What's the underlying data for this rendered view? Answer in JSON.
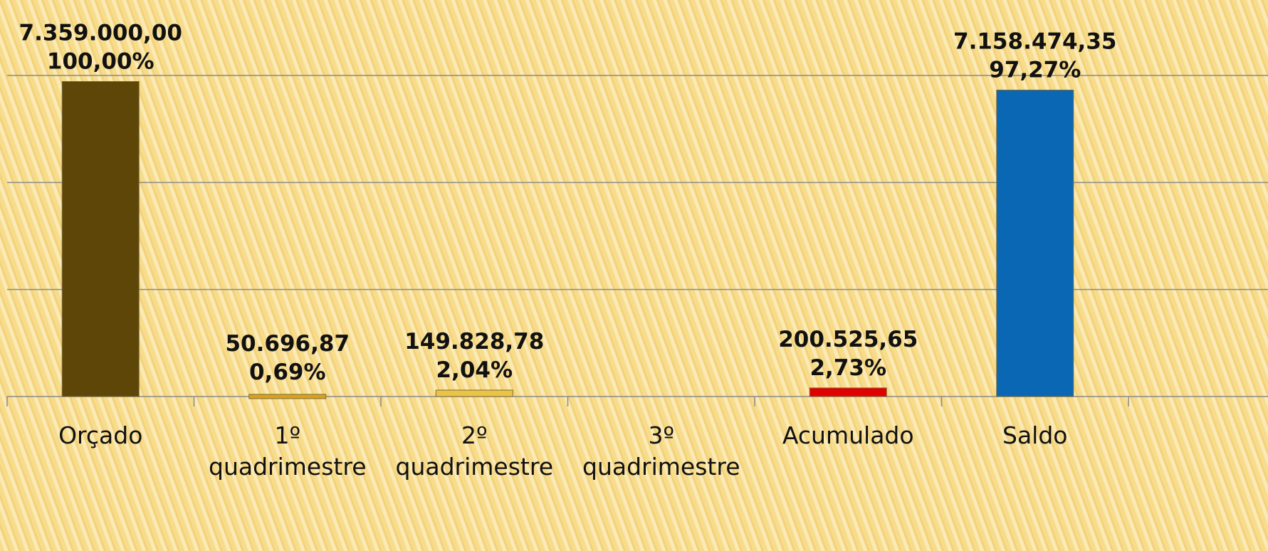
{
  "chart_data": {
    "type": "bar",
    "categories": [
      "Orçado",
      "1º quadrimestre",
      "2º quadrimestre",
      "3º quadrimestre",
      "Acumulado",
      "Saldo"
    ],
    "values": [
      7359000,
      50696.87,
      149828.78,
      null,
      200525.65,
      7158474.35
    ],
    "value_labels": [
      "7.359.000,00",
      "50.696,87",
      "149.828,78",
      null,
      "200.525,65",
      "7.158.474,35"
    ],
    "percent_labels": [
      "100,00%",
      "0,69%",
      "2,04%",
      null,
      "2,73%",
      "97,27%"
    ],
    "colors": [
      "#5e4608",
      "#d9a21e",
      "#ecc445",
      "#d4a020",
      "#e00000",
      "#0a67b4"
    ],
    "ylim": [
      0,
      7500000
    ],
    "yticks": [
      0,
      2500000,
      5000000,
      7500000
    ],
    "grid": true
  }
}
